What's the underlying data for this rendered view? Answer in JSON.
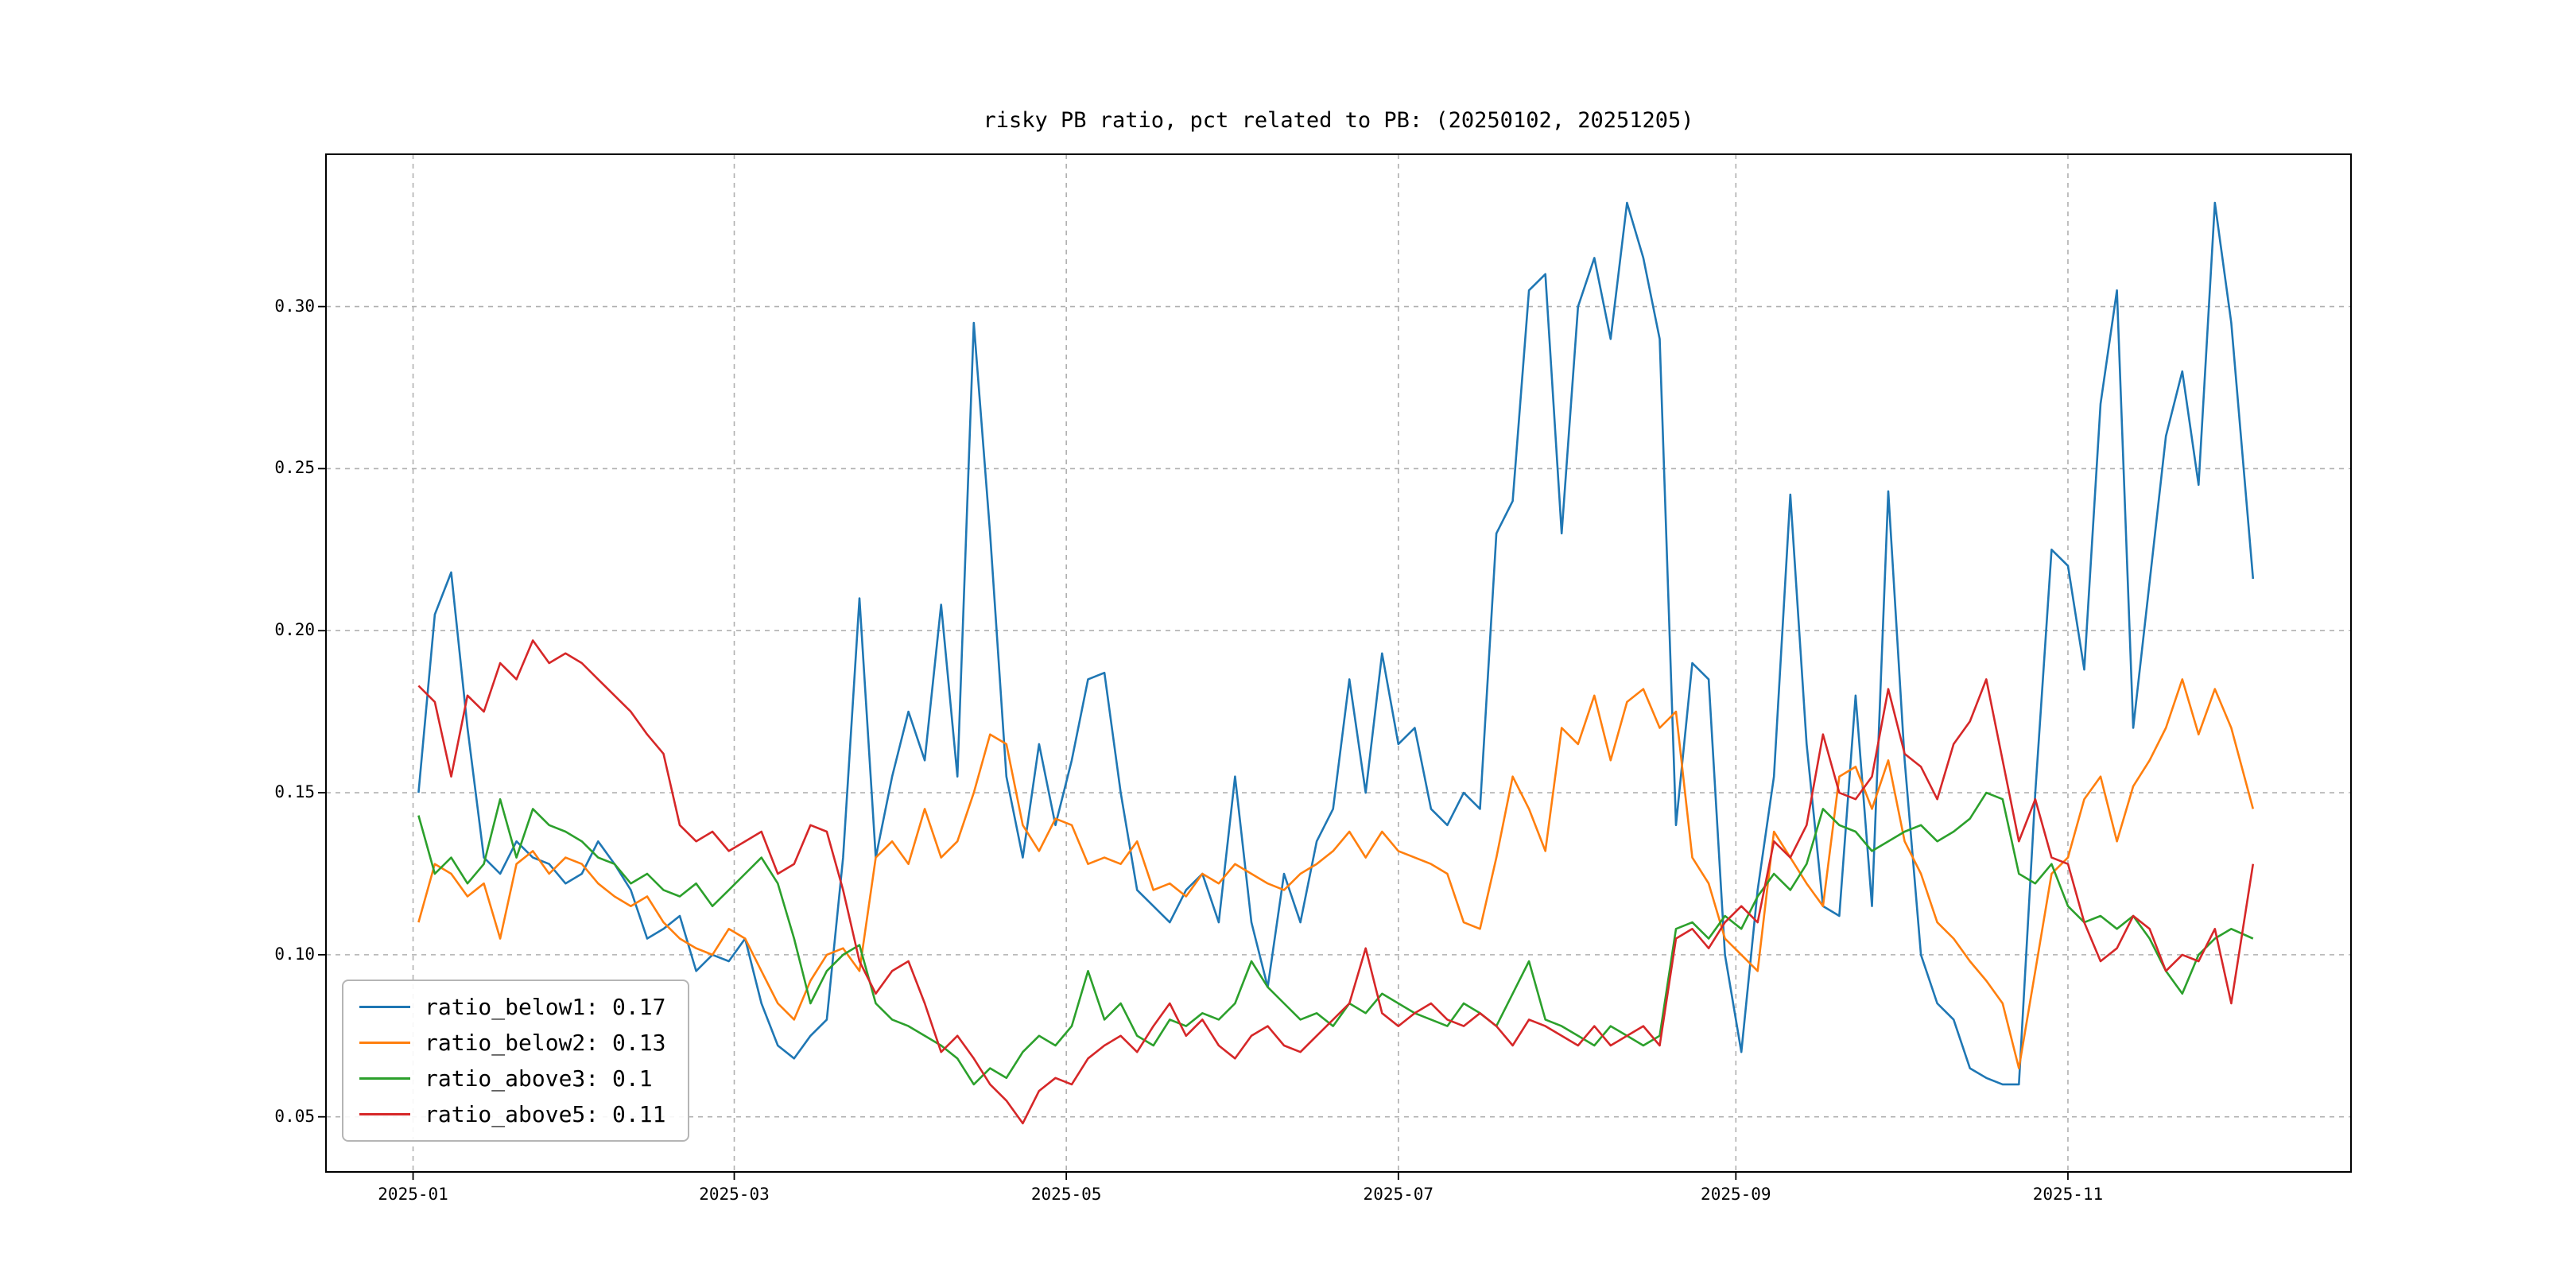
{
  "figure": {
    "title": "risky PB ratio, pct related to PB: (20250102, 20251205)"
  },
  "chart_data": {
    "type": "line",
    "title": "risky PB ratio, pct related to PB: (20250102, 20251205)",
    "xlabel": "",
    "ylabel": "",
    "grid": true,
    "grid_style": "dashed",
    "legend_position": "lower left",
    "x_axis": {
      "unit": "date",
      "start_date": "2025-01-02",
      "end_date": "2025-12-05",
      "tick_labels": [
        "2025-01",
        "2025-03",
        "2025-05",
        "2025-07",
        "2025-09",
        "2025-11"
      ],
      "tick_days": [
        1,
        60,
        121,
        182,
        244,
        305
      ],
      "range_days": [
        -15,
        357
      ]
    },
    "y_axis": {
      "ticks": [
        0.05,
        0.1,
        0.15,
        0.2,
        0.25,
        0.3
      ],
      "tick_labels": [
        "0.05",
        "0.10",
        "0.15",
        "0.20",
        "0.25",
        "0.30"
      ],
      "range": [
        0.033,
        0.347
      ]
    },
    "x_days": [
      2,
      5,
      8,
      11,
      14,
      17,
      20,
      23,
      26,
      29,
      32,
      35,
      38,
      41,
      44,
      47,
      50,
      53,
      56,
      59,
      62,
      65,
      68,
      71,
      74,
      77,
      80,
      83,
      86,
      89,
      92,
      95,
      98,
      101,
      104,
      107,
      110,
      113,
      116,
      119,
      122,
      125,
      128,
      131,
      134,
      137,
      140,
      143,
      146,
      149,
      152,
      155,
      158,
      161,
      164,
      167,
      170,
      173,
      176,
      179,
      182,
      185,
      188,
      191,
      194,
      197,
      200,
      203,
      206,
      209,
      212,
      215,
      218,
      221,
      224,
      227,
      230,
      233,
      236,
      239,
      242,
      245,
      248,
      251,
      254,
      257,
      260,
      263,
      266,
      269,
      272,
      275,
      278,
      281,
      284,
      287,
      290,
      293,
      296,
      299,
      302,
      305,
      308,
      311,
      314,
      317,
      320,
      323,
      326,
      329,
      332,
      335,
      339
    ],
    "series": [
      {
        "name": "ratio_below1",
        "legend_label": "ratio_below1: 0.17",
        "color": "#1f77b4",
        "values": [
          0.15,
          0.205,
          0.218,
          0.17,
          0.13,
          0.125,
          0.135,
          0.13,
          0.128,
          0.122,
          0.125,
          0.135,
          0.128,
          0.12,
          0.105,
          0.108,
          0.112,
          0.095,
          0.1,
          0.098,
          0.105,
          0.085,
          0.072,
          0.068,
          0.075,
          0.08,
          0.13,
          0.21,
          0.13,
          0.155,
          0.175,
          0.16,
          0.208,
          0.155,
          0.295,
          0.23,
          0.155,
          0.13,
          0.165,
          0.14,
          0.16,
          0.185,
          0.187,
          0.15,
          0.12,
          0.115,
          0.11,
          0.12,
          0.125,
          0.11,
          0.155,
          0.11,
          0.09,
          0.125,
          0.11,
          0.135,
          0.145,
          0.185,
          0.15,
          0.193,
          0.165,
          0.17,
          0.145,
          0.14,
          0.15,
          0.145,
          0.23,
          0.24,
          0.305,
          0.31,
          0.23,
          0.3,
          0.315,
          0.29,
          0.332,
          0.315,
          0.29,
          0.14,
          0.19,
          0.185,
          0.1,
          0.07,
          0.12,
          0.155,
          0.242,
          0.165,
          0.115,
          0.112,
          0.18,
          0.115,
          0.243,
          0.16,
          0.1,
          0.085,
          0.08,
          0.065,
          0.062,
          0.06,
          0.06,
          0.15,
          0.225,
          0.22,
          0.188,
          0.27,
          0.305,
          0.17,
          0.215,
          0.26,
          0.28,
          0.245,
          0.332,
          0.295,
          0.216
        ]
      },
      {
        "name": "ratio_below2",
        "legend_label": "ratio_below2: 0.13",
        "color": "#ff7f0e",
        "values": [
          0.11,
          0.128,
          0.125,
          0.118,
          0.122,
          0.105,
          0.128,
          0.132,
          0.125,
          0.13,
          0.128,
          0.122,
          0.118,
          0.115,
          0.118,
          0.11,
          0.105,
          0.102,
          0.1,
          0.108,
          0.105,
          0.095,
          0.085,
          0.08,
          0.092,
          0.1,
          0.102,
          0.095,
          0.13,
          0.135,
          0.128,
          0.145,
          0.13,
          0.135,
          0.15,
          0.168,
          0.165,
          0.14,
          0.132,
          0.142,
          0.14,
          0.128,
          0.13,
          0.128,
          0.135,
          0.12,
          0.122,
          0.118,
          0.125,
          0.122,
          0.128,
          0.125,
          0.122,
          0.12,
          0.125,
          0.128,
          0.132,
          0.138,
          0.13,
          0.138,
          0.132,
          0.13,
          0.128,
          0.125,
          0.11,
          0.108,
          0.13,
          0.155,
          0.145,
          0.132,
          0.17,
          0.165,
          0.18,
          0.16,
          0.178,
          0.182,
          0.17,
          0.175,
          0.13,
          0.122,
          0.105,
          0.1,
          0.095,
          0.138,
          0.13,
          0.122,
          0.115,
          0.155,
          0.158,
          0.145,
          0.16,
          0.135,
          0.125,
          0.11,
          0.105,
          0.098,
          0.092,
          0.085,
          0.065,
          0.095,
          0.125,
          0.13,
          0.148,
          0.155,
          0.135,
          0.152,
          0.16,
          0.17,
          0.185,
          0.168,
          0.182,
          0.17,
          0.145
        ]
      },
      {
        "name": "ratio_above3",
        "legend_label": "ratio_above3: 0.1",
        "color": "#2ca02c",
        "values": [
          0.143,
          0.125,
          0.13,
          0.122,
          0.128,
          0.148,
          0.13,
          0.145,
          0.14,
          0.138,
          0.135,
          0.13,
          0.128,
          0.122,
          0.125,
          0.12,
          0.118,
          0.122,
          0.115,
          0.12,
          0.125,
          0.13,
          0.122,
          0.105,
          0.085,
          0.095,
          0.1,
          0.103,
          0.085,
          0.08,
          0.078,
          0.075,
          0.072,
          0.068,
          0.06,
          0.065,
          0.062,
          0.07,
          0.075,
          0.072,
          0.078,
          0.095,
          0.08,
          0.085,
          0.075,
          0.072,
          0.08,
          0.078,
          0.082,
          0.08,
          0.085,
          0.098,
          0.09,
          0.085,
          0.08,
          0.082,
          0.078,
          0.085,
          0.082,
          0.088,
          0.085,
          0.082,
          0.08,
          0.078,
          0.085,
          0.082,
          0.078,
          0.088,
          0.098,
          0.08,
          0.078,
          0.075,
          0.072,
          0.078,
          0.075,
          0.072,
          0.075,
          0.108,
          0.11,
          0.105,
          0.112,
          0.108,
          0.118,
          0.125,
          0.12,
          0.128,
          0.145,
          0.14,
          0.138,
          0.132,
          0.135,
          0.138,
          0.14,
          0.135,
          0.138,
          0.142,
          0.15,
          0.148,
          0.125,
          0.122,
          0.128,
          0.115,
          0.11,
          0.112,
          0.108,
          0.112,
          0.105,
          0.095,
          0.088,
          0.1,
          0.105,
          0.108,
          0.105
        ]
      },
      {
        "name": "ratio_above5",
        "legend_label": "ratio_above5: 0.11",
        "color": "#d62728",
        "values": [
          0.183,
          0.178,
          0.155,
          0.18,
          0.175,
          0.19,
          0.185,
          0.197,
          0.19,
          0.193,
          0.19,
          0.185,
          0.18,
          0.175,
          0.168,
          0.162,
          0.14,
          0.135,
          0.138,
          0.132,
          0.135,
          0.138,
          0.125,
          0.128,
          0.14,
          0.138,
          0.12,
          0.098,
          0.088,
          0.095,
          0.098,
          0.085,
          0.07,
          0.075,
          0.068,
          0.06,
          0.055,
          0.048,
          0.058,
          0.062,
          0.06,
          0.068,
          0.072,
          0.075,
          0.07,
          0.078,
          0.085,
          0.075,
          0.08,
          0.072,
          0.068,
          0.075,
          0.078,
          0.072,
          0.07,
          0.075,
          0.08,
          0.085,
          0.102,
          0.082,
          0.078,
          0.082,
          0.085,
          0.08,
          0.078,
          0.082,
          0.078,
          0.072,
          0.08,
          0.078,
          0.075,
          0.072,
          0.078,
          0.072,
          0.075,
          0.078,
          0.072,
          0.105,
          0.108,
          0.102,
          0.11,
          0.115,
          0.11,
          0.135,
          0.13,
          0.14,
          0.168,
          0.15,
          0.148,
          0.155,
          0.182,
          0.162,
          0.158,
          0.148,
          0.165,
          0.172,
          0.185,
          0.16,
          0.135,
          0.148,
          0.13,
          0.128,
          0.11,
          0.098,
          0.102,
          0.112,
          0.108,
          0.095,
          0.1,
          0.098,
          0.108,
          0.085,
          0.128
        ]
      }
    ]
  }
}
